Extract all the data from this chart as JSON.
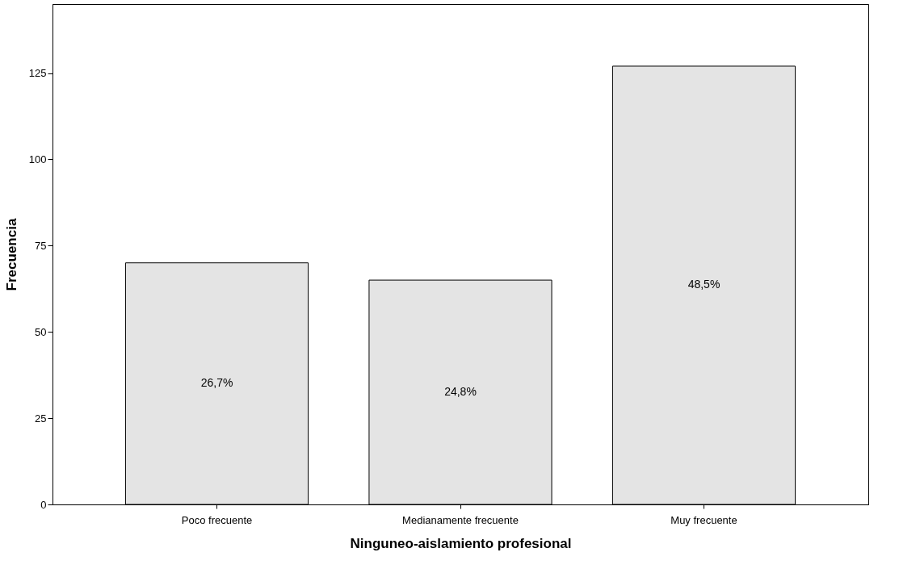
{
  "chart_data": {
    "type": "bar",
    "xlabel": "Ninguneo-aislamiento profesional",
    "ylabel": "Frecuencia",
    "categories": [
      "Poco frecuente",
      "Medianamente frecuente",
      "Muy frecuente"
    ],
    "values": [
      70,
      65,
      127
    ],
    "annotations": [
      "26,7%",
      "24,8%",
      "48,5%"
    ],
    "color": "#e4e4e4",
    "ylim": [
      0,
      145
    ],
    "yticks": [
      0,
      25,
      50,
      75,
      100,
      125
    ],
    "grid": false
  }
}
